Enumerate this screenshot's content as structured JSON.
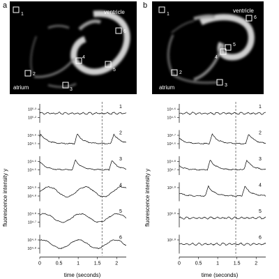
{
  "figure": {
    "panels": [
      {
        "letter": "a",
        "labels": {
          "ventricle": "ventricle",
          "atrium": "atrium"
        },
        "rois": [
          "1",
          "2",
          "3",
          "4",
          "5",
          "6"
        ],
        "ylabel": "fluorescence intensity y",
        "xlabel": "time (seconds)",
        "xticks": [
          "0",
          "0.5",
          "1",
          "1.5",
          "2"
        ],
        "xlim": [
          0,
          2.25
        ],
        "dashed_time": 1.62,
        "traces": [
          {
            "number": "1",
            "tick_hi": "10⁵·³",
            "tick_lo": "10⁵·²",
            "kind": "flat"
          },
          {
            "number": "2",
            "tick_hi": "10⁴·⁶",
            "tick_lo": "10⁴·⁵",
            "kind": "spike"
          },
          {
            "number": "3",
            "tick_hi": "10⁴·⁶",
            "tick_lo": "10⁴·⁵",
            "kind": "spike"
          },
          {
            "number": "4",
            "tick_hi": "10⁴·⁹",
            "tick_lo": "10⁴·⁸",
            "kind": "wave"
          },
          {
            "number": "5",
            "tick_hi": "10⁴·⁸",
            "tick_lo": "10⁴·⁷",
            "kind": "smooth"
          },
          {
            "number": "6",
            "tick_hi": "10⁴·⁹",
            "tick_lo": "10⁴·⁸",
            "kind": "smooth"
          }
        ]
      },
      {
        "letter": "b",
        "labels": {
          "ventricle": "ventricle",
          "atrium": "atrium"
        },
        "rois": [
          "1",
          "2",
          "3",
          "4",
          "5",
          "6"
        ],
        "ylabel": "fluorescence intensity y",
        "xlabel": "time (seconds)",
        "xticks": [
          "0",
          "0.5",
          "1",
          "1.5",
          "2"
        ],
        "xlim": [
          0,
          2.25
        ],
        "dashed_time": 1.47,
        "traces": [
          {
            "number": "1",
            "tick_hi": "10⁴·⁶",
            "tick_lo": "10⁴·⁵",
            "kind": "flat"
          },
          {
            "number": "2",
            "tick_hi": "10⁴·⁷",
            "tick_lo": "10⁴·⁶",
            "kind": "spike"
          },
          {
            "number": "3",
            "tick_hi": "10⁴·⁸",
            "tick_lo": "10⁴·⁷",
            "kind": "spike"
          },
          {
            "number": "4",
            "tick_hi": "10⁵·⁰",
            "tick_lo": "",
            "kind": "spike"
          },
          {
            "number": "5",
            "tick_hi": "10⁵·⁰",
            "tick_lo": "",
            "kind": "flat"
          },
          {
            "number": "6",
            "tick_hi": "10⁵·⁰",
            "tick_lo": "",
            "kind": "flat"
          }
        ]
      }
    ]
  }
}
